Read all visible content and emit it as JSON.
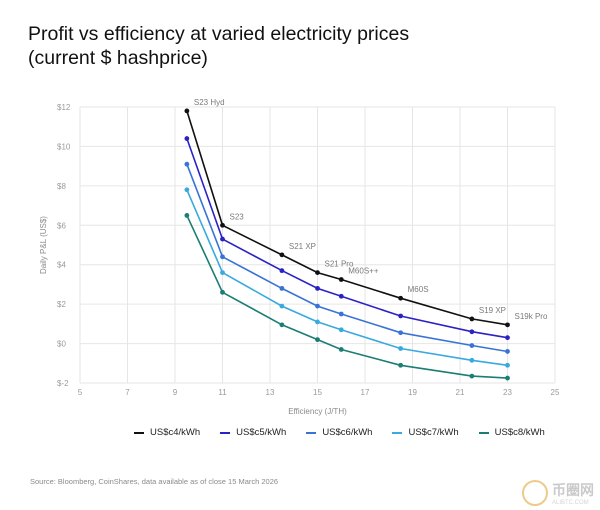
{
  "chart_data": {
    "type": "line",
    "title_line1": "Profit vs efficiency at varied electricity prices",
    "title_line2": "(current $ hashprice)",
    "xlabel": "Efficiency (J/TH)",
    "ylabel": "Daily P&L (US$)",
    "xlim": [
      5,
      25
    ],
    "ylim": [
      -2,
      12
    ],
    "x_ticks": [
      5,
      7,
      9,
      11,
      13,
      15,
      17,
      19,
      21,
      23,
      25
    ],
    "y_ticks": [
      -2,
      0,
      2,
      4,
      6,
      8,
      10,
      12
    ],
    "y_tick_labels": [
      "$-2",
      "$0",
      "$2",
      "$4",
      "$6",
      "$8",
      "$10",
      "$12"
    ],
    "x": [
      9.5,
      11,
      13.5,
      15,
      16,
      18.5,
      21.5,
      23
    ],
    "series": [
      {
        "name": "US$c4/kWh",
        "color": "#111111",
        "values": [
          11.8,
          6.0,
          4.5,
          3.6,
          3.25,
          2.3,
          1.25,
          0.95
        ]
      },
      {
        "name": "US$c5/kWh",
        "color": "#2b22c4",
        "values": [
          10.4,
          5.3,
          3.7,
          2.8,
          2.4,
          1.4,
          0.6,
          0.3
        ]
      },
      {
        "name": "US$c6/kWh",
        "color": "#3a73d6",
        "values": [
          9.1,
          4.4,
          2.8,
          1.9,
          1.5,
          0.55,
          -0.1,
          -0.4
        ]
      },
      {
        "name": "US$c7/kWh",
        "color": "#39a9df",
        "values": [
          7.8,
          3.6,
          1.9,
          1.1,
          0.7,
          -0.25,
          -0.85,
          -1.1
        ]
      },
      {
        "name": "US$c8/kWh",
        "color": "#1b7d74",
        "values": [
          6.5,
          2.6,
          0.95,
          0.2,
          -0.3,
          -1.1,
          -1.65,
          -1.75
        ]
      }
    ],
    "point_labels": [
      {
        "text": "S23 Hyd",
        "x": 9.5,
        "y": 11.8
      },
      {
        "text": "S23",
        "x": 11,
        "y": 6.0
      },
      {
        "text": "S21 XP",
        "x": 13.5,
        "y": 4.5
      },
      {
        "text": "S21 Pro",
        "x": 15,
        "y": 3.6
      },
      {
        "text": "M60S++",
        "x": 16,
        "y": 3.25
      },
      {
        "text": "M60S",
        "x": 18.5,
        "y": 2.3
      },
      {
        "text": "S19 XP",
        "x": 21.5,
        "y": 1.25
      },
      {
        "text": "S19k Pro",
        "x": 23,
        "y": 0.95
      }
    ],
    "grid": true,
    "legend_position": "bottom"
  },
  "source": "Source: Bloomberg, CoinShares, data available as of close 15 March 2026",
  "watermark": {
    "brand": "币圈网",
    "sub": "ALIBTC.COM"
  }
}
